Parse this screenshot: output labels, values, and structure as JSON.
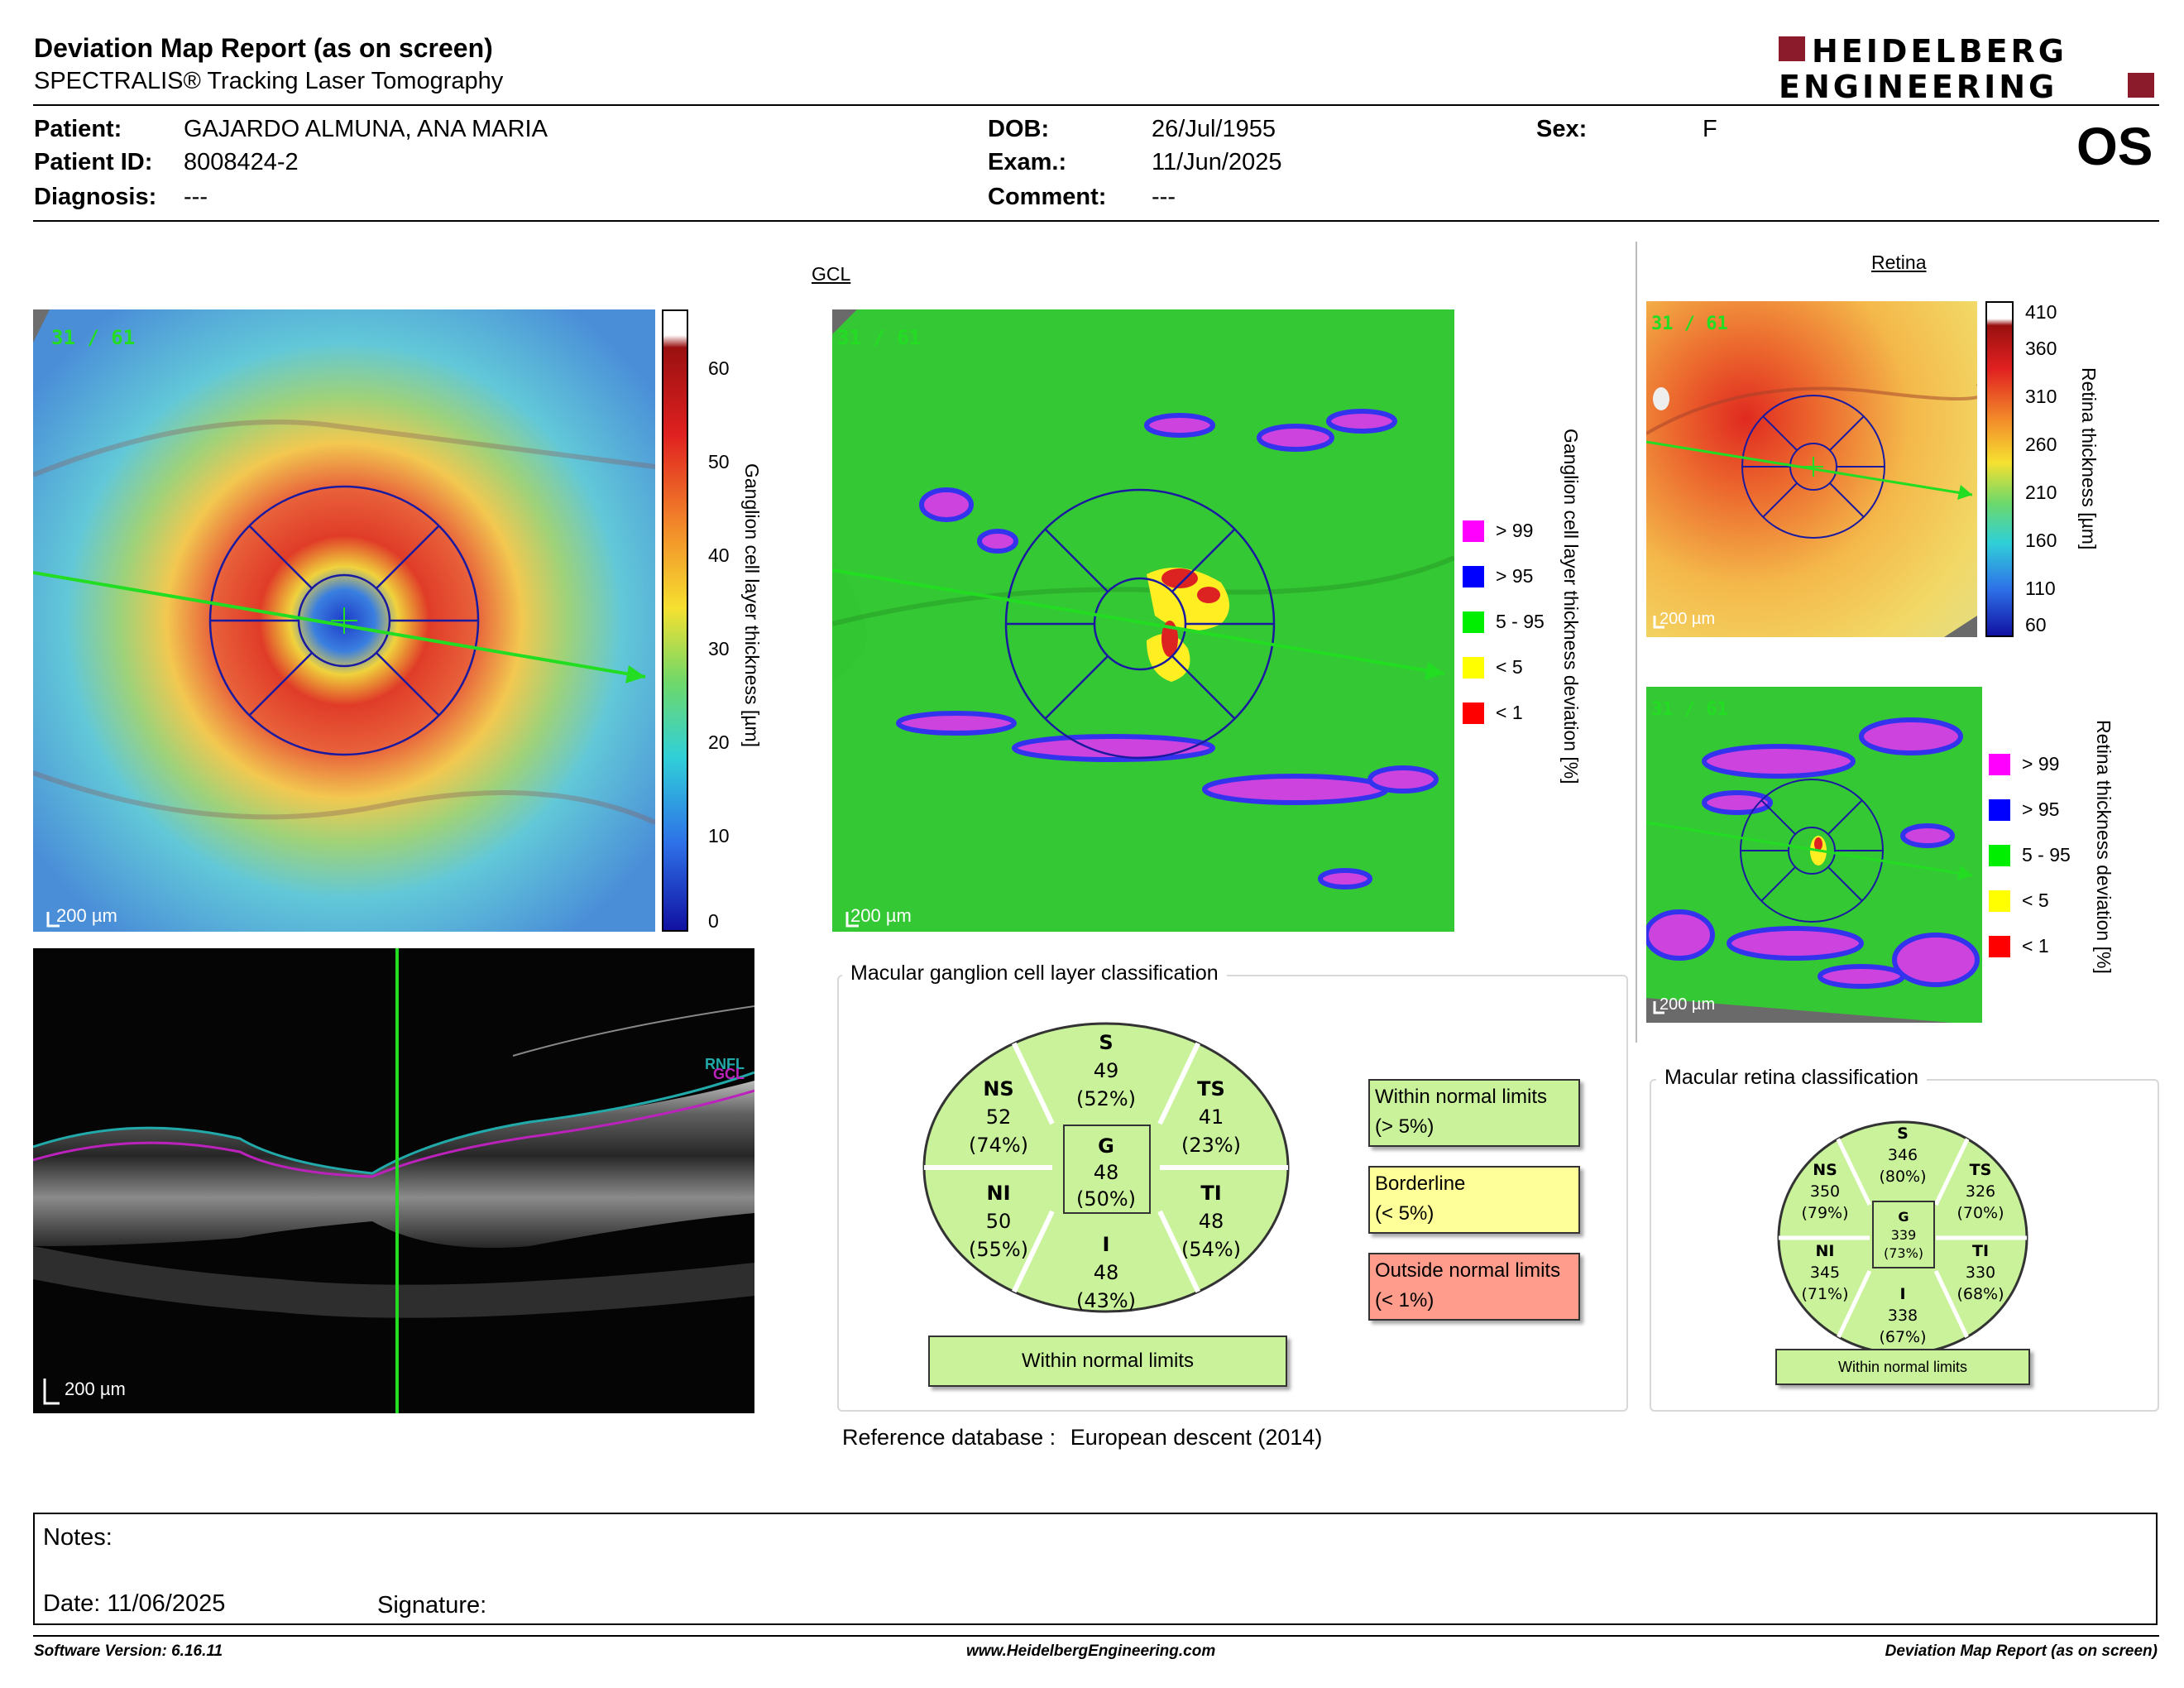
{
  "header": {
    "title": "Deviation Map Report (as on screen)",
    "subtitle": "SPECTRALIS® Tracking Laser Tomography",
    "brand_line1": "HEIDELBERG",
    "brand_line2": "ENGINEERING",
    "brand_color": "#8b1a2b",
    "eye": "OS"
  },
  "patient": {
    "patient_label": "Patient:",
    "patient_value": "GAJARDO ALMUNA, ANA MARIA",
    "id_label": "Patient ID:",
    "id_value": "8008424-2",
    "diagnosis_label": "Diagnosis:",
    "diagnosis_value": "---",
    "dob_label": "DOB:",
    "dob_value": "26/Jul/1955",
    "exam_label": "Exam.:",
    "exam_value": "11/Jun/2025",
    "comment_label": "Comment:",
    "comment_value": "---",
    "sex_label": "Sex:",
    "sex_value": "F"
  },
  "gcl": {
    "section_title": "GCL",
    "scan_index": "31 / 61",
    "scale_bar": "200 µm",
    "thickness_axis_title": "Ganglion cell layer thickness [µm]",
    "thickness_ticks": [
      "60",
      "50",
      "40",
      "30",
      "20",
      "10",
      "0"
    ],
    "deviation_axis_title": "Ganglion cell layer thickness deviation [%]",
    "deviation_legend": [
      {
        "label": "> 99",
        "color": "#ff00ff"
      },
      {
        "label": "> 95",
        "color": "#0000ff"
      },
      {
        "label": "5 - 95",
        "color": "#00ee00"
      },
      {
        "label": "< 5",
        "color": "#ffff00"
      },
      {
        "label": "< 1",
        "color": "#ff0000"
      }
    ]
  },
  "bscan": {
    "scale_bar": "200 µm",
    "layer_label_1": "RNFL",
    "layer_label_2": "GCL"
  },
  "gcl_classification": {
    "title": "Macular ganglion cell layer classification",
    "sectors": {
      "S": {
        "name": "S",
        "value": "49",
        "pct": "(52%)"
      },
      "NS": {
        "name": "NS",
        "value": "52",
        "pct": "(74%)"
      },
      "TS": {
        "name": "TS",
        "value": "41",
        "pct": "(23%)"
      },
      "G": {
        "name": "G",
        "value": "48",
        "pct": "(50%)"
      },
      "NI": {
        "name": "NI",
        "value": "50",
        "pct": "(55%)"
      },
      "TI": {
        "name": "TI",
        "value": "48",
        "pct": "(54%)"
      },
      "I": {
        "name": "I",
        "value": "48",
        "pct": "(43%)"
      }
    },
    "overall": "Within normal limits",
    "key": [
      {
        "line1": "Within normal limits",
        "line2": "(> 5%)",
        "color": "#c9f29b"
      },
      {
        "line1": "Borderline",
        "line2": "(< 5%)",
        "color": "#ffff99"
      },
      {
        "line1": "Outside normal limits",
        "line2": "(< 1%)",
        "color": "#ff9c8c"
      }
    ]
  },
  "reference": {
    "label": "Reference database :",
    "value": "European descent (2014)"
  },
  "retina": {
    "section_title": "Retina",
    "scan_index": "31 / 61",
    "scale_bar": "200 µm",
    "thickness_axis_title": "Retina thickness [µm]",
    "thickness_ticks": [
      "410",
      "360",
      "310",
      "260",
      "210",
      "160",
      "110",
      "60"
    ],
    "deviation_axis_title": "Retina thickness deviation [%]",
    "deviation_legend": [
      {
        "label": "> 99",
        "color": "#ff00ff"
      },
      {
        "label": "> 95",
        "color": "#0000ff"
      },
      {
        "label": "5 - 95",
        "color": "#00ee00"
      },
      {
        "label": "< 5",
        "color": "#ffff00"
      },
      {
        "label": "< 1",
        "color": "#ff0000"
      }
    ]
  },
  "retina_classification": {
    "title": "Macular retina classification",
    "sectors": {
      "S": {
        "name": "S",
        "value": "346",
        "pct": "(80%)"
      },
      "NS": {
        "name": "NS",
        "value": "350",
        "pct": "(79%)"
      },
      "TS": {
        "name": "TS",
        "value": "326",
        "pct": "(70%)"
      },
      "G": {
        "name": "G",
        "value": "339",
        "pct": "(73%)"
      },
      "NI": {
        "name": "NI",
        "value": "345",
        "pct": "(71%)"
      },
      "TI": {
        "name": "TI",
        "value": "330",
        "pct": "(68%)"
      },
      "I": {
        "name": "I",
        "value": "338",
        "pct": "(67%)"
      }
    },
    "overall": "Within normal limits"
  },
  "notes": {
    "notes_label": "Notes:",
    "date_label": "Date: 11/06/2025",
    "signature_label": "Signature:"
  },
  "footer": {
    "software": "Software Version: 6.16.11",
    "website": "www.HeidelbergEngineering.com",
    "report": "Deviation Map Report (as on screen)"
  }
}
